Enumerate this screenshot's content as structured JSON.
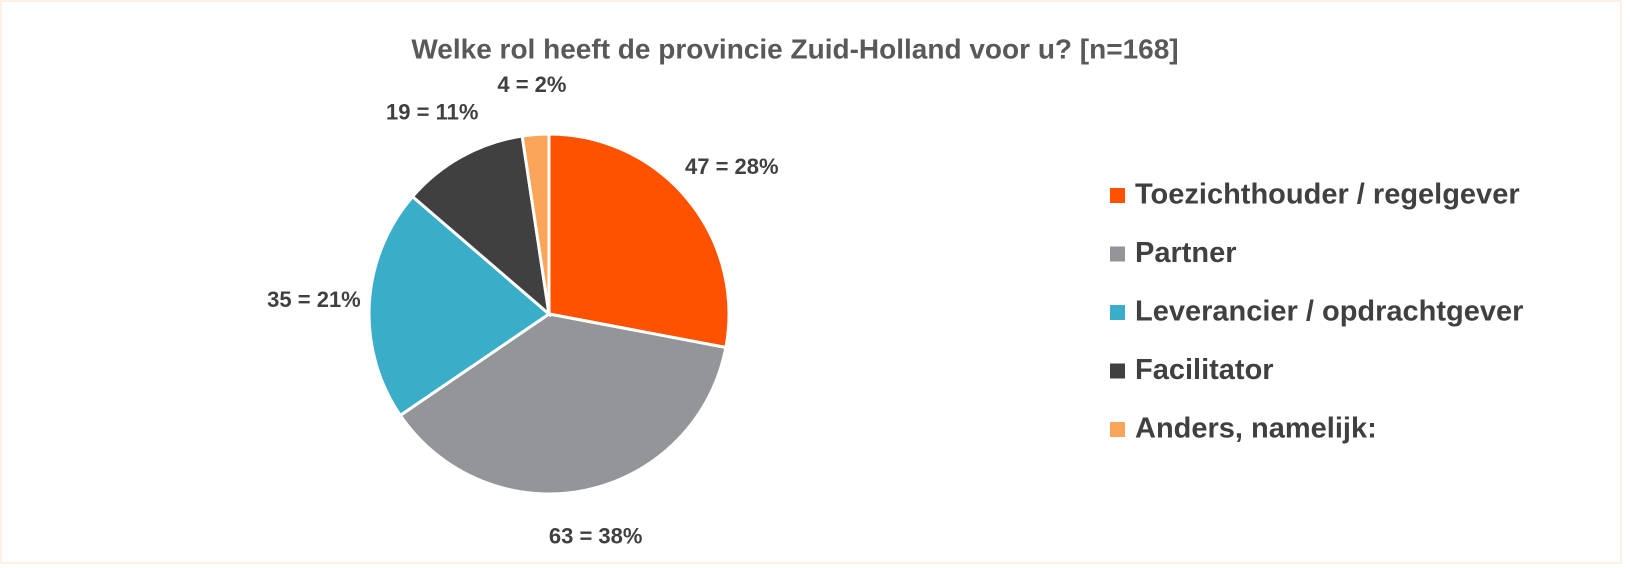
{
  "chart_data": {
    "type": "pie",
    "title": "Welke rol heeft de provincie Zuid-Holland voor u? [n=168]",
    "categories": [
      "Toezichthouder / regelgever",
      "Partner",
      "Leverancier / opdrachtgever",
      "Facilitator",
      "Anders, namelijk:"
    ],
    "values": [
      47,
      63,
      35,
      19,
      4
    ],
    "value_labels": [
      "47 = 28%",
      "63 = 38%",
      "35 = 21%",
      "19 = 11%",
      "4 = 2%"
    ],
    "colors": [
      "#ff5200",
      "#939598",
      "#3aaec8",
      "#404040",
      "#fba55a"
    ],
    "legend": "right"
  }
}
